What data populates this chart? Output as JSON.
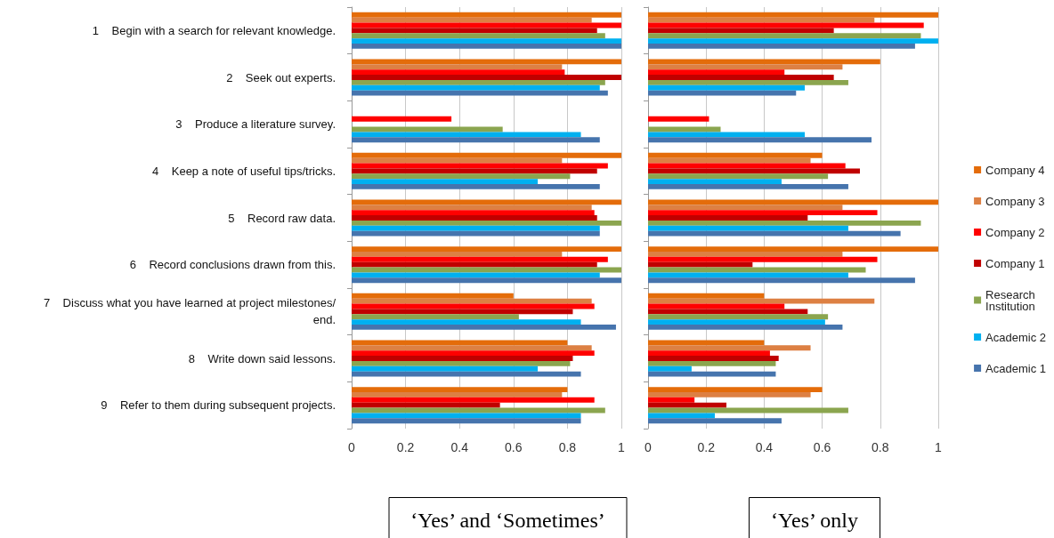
{
  "chart_data": [
    {
      "type": "bar",
      "orientation": "horizontal",
      "title": "‘Yes’ and ‘Sometimes’",
      "categories": [
        "1    Begin with a search for relevant knowledge.",
        "2    Seek out experts.",
        "3    Produce a literature survey.",
        "4    Keep a note of useful tips/tricks.",
        "5    Record raw data.",
        "6    Record conclusions drawn from this.",
        "7    Discuss what you have learned at project milestones/end.",
        "8    Write down said lessons.",
        "9    Refer to them during subsequent projects."
      ],
      "series": [
        {
          "color": "#e46c0a",
          "values": [
            1,
            1,
            null,
            1,
            1,
            1,
            0.6,
            0.8,
            0.8
          ]
        },
        {
          "color": "#dd8043",
          "values": [
            0.89,
            0.78,
            null,
            0.78,
            0.89,
            0.78,
            0.89,
            0.89,
            0.78
          ]
        },
        {
          "color": "#ff0000",
          "values": [
            1,
            0.79,
            0.37,
            0.95,
            0.9,
            0.95,
            0.9,
            0.9,
            0.9
          ]
        },
        {
          "color": "#c00000",
          "values": [
            0.91,
            1,
            null,
            0.91,
            0.91,
            0.91,
            0.82,
            0.82,
            0.55
          ]
        },
        {
          "color": "#8ba54f",
          "values": [
            0.94,
            0.94,
            0.56,
            0.81,
            1,
            1,
            0.62,
            0.81,
            0.94
          ]
        },
        {
          "color": "#00b0f0",
          "values": [
            1,
            0.92,
            0.85,
            0.69,
            0.92,
            0.92,
            0.85,
            0.69,
            0.85
          ]
        },
        {
          "color": "#4674ad",
          "values": [
            1,
            0.95,
            0.92,
            0.92,
            0.92,
            1,
            0.98,
            0.85,
            0.85
          ]
        }
      ],
      "xlim": [
        0,
        1
      ],
      "xticks": [
        0,
        0.2,
        0.4,
        0.6,
        0.8,
        1
      ],
      "grid": "x",
      "legend": false
    },
    {
      "type": "bar",
      "orientation": "horizontal",
      "title": "‘Yes’ only",
      "categories": [
        null,
        null,
        null,
        null,
        null,
        null,
        null,
        null,
        null
      ],
      "series": [
        {
          "name": "Company 4",
          "color": "#e46c0a",
          "values": [
            1,
            0.8,
            null,
            0.6,
            1,
            1,
            0.4,
            0.4,
            0.6
          ]
        },
        {
          "name": "Company 3",
          "color": "#dd8043",
          "values": [
            0.78,
            0.67,
            null,
            0.56,
            0.67,
            0.67,
            0.78,
            0.56,
            0.56
          ]
        },
        {
          "name": "Company 2",
          "color": "#ff0000",
          "values": [
            0.95,
            0.47,
            0.21,
            0.68,
            0.79,
            0.79,
            0.47,
            0.42,
            0.16
          ]
        },
        {
          "name": "Company 1",
          "color": "#c00000",
          "values": [
            0.64,
            0.64,
            null,
            0.73,
            0.55,
            0.36,
            0.55,
            0.45,
            0.27
          ]
        },
        {
          "name": "Research Institution",
          "color": "#8ba54f",
          "values": [
            0.94,
            0.69,
            0.25,
            0.62,
            0.94,
            0.75,
            0.62,
            0.44,
            0.69
          ]
        },
        {
          "name": "Academic 2",
          "color": "#00b0f0",
          "values": [
            1,
            0.54,
            0.54,
            0.46,
            0.69,
            0.69,
            0.61,
            0.15,
            0.23
          ]
        },
        {
          "name": "Academic 1",
          "color": "#4674ad",
          "values": [
            0.92,
            0.51,
            0.77,
            0.69,
            0.87,
            0.92,
            0.67,
            0.44,
            0.46
          ]
        }
      ],
      "xlim": [
        0,
        1
      ],
      "xticks": [
        0,
        0.2,
        0.4,
        0.6,
        0.8,
        1
      ],
      "grid": "x",
      "legend": "right"
    }
  ]
}
